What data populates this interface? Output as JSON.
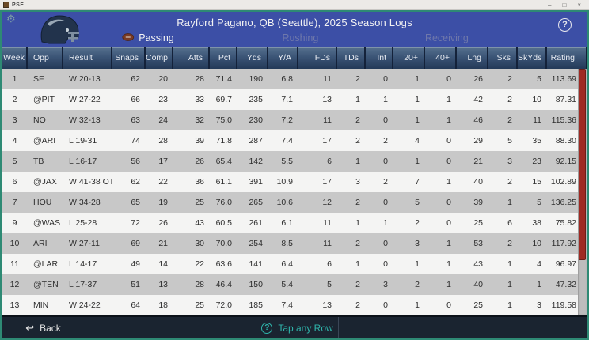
{
  "window": {
    "title": "PSF",
    "controls": {
      "minimize": "–",
      "maximize": "□",
      "close": "×"
    }
  },
  "colors": {
    "banner_blue": "#3c4fa6",
    "frame_teal": "#2e8a74",
    "header_navy": "#3b5476",
    "row_gray": "#c8c8c8",
    "row_white": "#f4f4f3",
    "scroll_thumb_red": "#9e2a23",
    "hint_teal": "#2fb5ab",
    "footer_dark": "#1a2430"
  },
  "banner": {
    "title": "Rayford Pagano, QB (Seattle), 2025 Season Logs",
    "gear_icon": "⚙",
    "help_icon": "?",
    "tabs": [
      {
        "label": "Passing",
        "active": true,
        "icon": "football-icon"
      },
      {
        "label": "Rushing",
        "active": false
      },
      {
        "label": "Receiving",
        "active": false
      }
    ]
  },
  "table": {
    "columns": [
      {
        "label": "Week",
        "align": "center"
      },
      {
        "label": "Opp",
        "align": "left"
      },
      {
        "label": "Result",
        "align": "left"
      },
      {
        "label": "Snaps",
        "align": "right"
      },
      {
        "label": "Comp",
        "align": "right"
      },
      {
        "label": "Atts",
        "align": "right"
      },
      {
        "label": "Pct",
        "align": "right"
      },
      {
        "label": "Yds",
        "align": "right"
      },
      {
        "label": "Y/A",
        "align": "right"
      },
      {
        "label": "FDs",
        "align": "right"
      },
      {
        "label": "TDs",
        "align": "right"
      },
      {
        "label": "Int",
        "align": "right"
      },
      {
        "label": "20+",
        "align": "right"
      },
      {
        "label": "40+",
        "align": "right"
      },
      {
        "label": "Lng",
        "align": "right"
      },
      {
        "label": "Sks",
        "align": "right"
      },
      {
        "label": "SkYds",
        "align": "right"
      },
      {
        "label": "Rating",
        "align": "right"
      }
    ],
    "rows": [
      [
        "1",
        "SF",
        "W 20-13",
        "62",
        "20",
        "28",
        "71.4",
        "190",
        "6.8",
        "11",
        "2",
        "0",
        "1",
        "0",
        "26",
        "2",
        "5",
        "113.69"
      ],
      [
        "2",
        "@PIT",
        "W 27-22",
        "66",
        "23",
        "33",
        "69.7",
        "235",
        "7.1",
        "13",
        "1",
        "1",
        "1",
        "1",
        "42",
        "2",
        "10",
        "87.31"
      ],
      [
        "3",
        "NO",
        "W 32-13",
        "63",
        "24",
        "32",
        "75.0",
        "230",
        "7.2",
        "11",
        "2",
        "0",
        "1",
        "1",
        "46",
        "2",
        "11",
        "115.36"
      ],
      [
        "4",
        "@ARI",
        "L 19-31",
        "74",
        "28",
        "39",
        "71.8",
        "287",
        "7.4",
        "17",
        "2",
        "2",
        "4",
        "0",
        "29",
        "5",
        "35",
        "88.30"
      ],
      [
        "5",
        "TB",
        "L 16-17",
        "56",
        "17",
        "26",
        "65.4",
        "142",
        "5.5",
        "6",
        "1",
        "0",
        "1",
        "0",
        "21",
        "3",
        "23",
        "92.15"
      ],
      [
        "6",
        "@JAX",
        "W 41-38 OT",
        "62",
        "22",
        "36",
        "61.1",
        "391",
        "10.9",
        "17",
        "3",
        "2",
        "7",
        "1",
        "40",
        "2",
        "15",
        "102.89"
      ],
      [
        "7",
        "HOU",
        "W 34-28",
        "65",
        "19",
        "25",
        "76.0",
        "265",
        "10.6",
        "12",
        "2",
        "0",
        "5",
        "0",
        "39",
        "1",
        "5",
        "136.25"
      ],
      [
        "9",
        "@WAS",
        "L 25-28",
        "72",
        "26",
        "43",
        "60.5",
        "261",
        "6.1",
        "11",
        "1",
        "1",
        "2",
        "0",
        "25",
        "6",
        "38",
        "75.82"
      ],
      [
        "10",
        "ARI",
        "W 27-11",
        "69",
        "21",
        "30",
        "70.0",
        "254",
        "8.5",
        "11",
        "2",
        "0",
        "3",
        "1",
        "53",
        "2",
        "10",
        "117.92"
      ],
      [
        "11",
        "@LAR",
        "L 14-17",
        "49",
        "14",
        "22",
        "63.6",
        "141",
        "6.4",
        "6",
        "1",
        "0",
        "1",
        "1",
        "43",
        "1",
        "4",
        "96.97"
      ],
      [
        "12",
        "@TEN",
        "L 17-37",
        "51",
        "13",
        "28",
        "46.4",
        "150",
        "5.4",
        "5",
        "2",
        "3",
        "2",
        "1",
        "40",
        "1",
        "1",
        "47.32"
      ],
      [
        "13",
        "MIN",
        "W 24-22",
        "64",
        "18",
        "25",
        "72.0",
        "185",
        "7.4",
        "13",
        "2",
        "0",
        "1",
        "0",
        "25",
        "1",
        "3",
        "119.58"
      ]
    ]
  },
  "footer": {
    "back_icon": "↩",
    "back_label": "Back",
    "hint_icon": "?",
    "hint_label": "Tap any Row"
  }
}
